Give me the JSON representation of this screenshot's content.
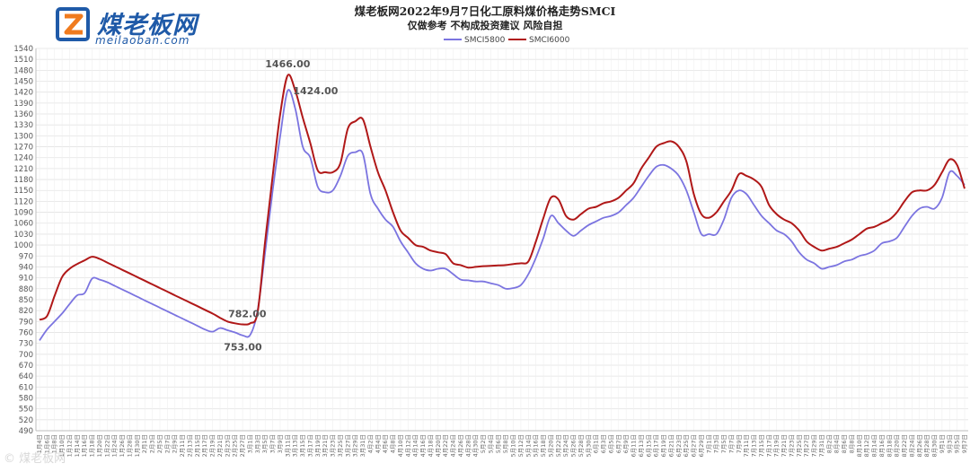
{
  "logo": {
    "brand_text": "煤老板网",
    "url_text": "meilaoban.com",
    "colors": {
      "primary": "#1f5aa8",
      "accent": "#f07b1e"
    }
  },
  "watermark": "© 煤老板网",
  "colors": {
    "SMCI5800": "#7b74e0",
    "SMCI6000": "#b01818",
    "grid": "#e3e3e3"
  },
  "chart_data": {
    "type": "line",
    "title": "煤老板网2022年9月7日化工原料煤价格走势SMCI",
    "subtitle": "仅做参考 不构成投资建议 风险自担",
    "xlabel": "",
    "ylabel": "",
    "ylim": [
      490,
      1540
    ],
    "ytick_step": 10,
    "ytick_label_step": 30,
    "grid": true,
    "legend_position": "top-center",
    "x": [
      "1月4日",
      "1月6日",
      "1月8日",
      "1月10日",
      "1月12日",
      "1月14日",
      "1月16日",
      "1月18日",
      "1月20日",
      "1月22日",
      "1月24日",
      "1月26日",
      "1月28日",
      "1月30日",
      "2月1日",
      "2月3日",
      "2月5日",
      "2月7日",
      "2月9日",
      "2月11日",
      "2月13日",
      "2月15日",
      "2月17日",
      "2月19日",
      "2月21日",
      "2月23日",
      "2月25日",
      "2月27日",
      "3月1日",
      "3月3日",
      "3月5日",
      "3月7日",
      "3月9日",
      "3月11日",
      "3月13日",
      "3月15日",
      "3月17日",
      "3月19日",
      "3月21日",
      "3月23日",
      "3月25日",
      "3月27日",
      "3月29日",
      "3月31日",
      "4月2日",
      "4月4日",
      "4月6日",
      "4月8日",
      "4月10日",
      "4月12日",
      "4月14日",
      "4月16日",
      "4月18日",
      "4月20日",
      "4月22日",
      "4月24日",
      "4月26日",
      "4月28日",
      "4月30日",
      "5月2日",
      "5月4日",
      "5月6日",
      "5月8日",
      "5月10日",
      "5月12日",
      "5月14日",
      "5月16日",
      "5月18日",
      "5月20日",
      "5月22日",
      "5月24日",
      "5月26日",
      "5月28日",
      "5月30日",
      "6月1日",
      "6月3日",
      "6月5日",
      "6月7日",
      "6月9日",
      "6月11日",
      "6月13日",
      "6月15日",
      "6月17日",
      "6月19日",
      "6月21日",
      "6月23日",
      "6月25日",
      "6月27日",
      "6月29日",
      "7月1日",
      "7月3日",
      "7月5日",
      "7月7日",
      "7月9日",
      "7月11日",
      "7月13日",
      "7月15日",
      "7月17日",
      "7月19日",
      "7月21日",
      "7月23日",
      "7月25日",
      "7月27日",
      "7月29日",
      "7月31日",
      "8月2日",
      "8月4日",
      "8月6日",
      "8月8日",
      "8月10日",
      "8月12日",
      "8月14日",
      "8月16日",
      "8月18日",
      "8月20日",
      "8月22日",
      "8月24日",
      "8月26日",
      "8月28日",
      "8月30日",
      "9月1日",
      "9月3日",
      "9月5日",
      "9月7日"
    ],
    "series": [
      {
        "name": "SMCI5800",
        "color": "#7b74e0",
        "values": [
          738,
          768,
          790,
          812,
          838,
          862,
          868,
          908,
          905,
          898,
          888,
          878,
          868,
          858,
          848,
          838,
          828,
          818,
          808,
          798,
          788,
          778,
          768,
          762,
          772,
          766,
          760,
          752,
          753,
          820,
          980,
          1150,
          1300,
          1424,
          1375,
          1270,
          1240,
          1160,
          1145,
          1150,
          1190,
          1245,
          1255,
          1250,
          1140,
          1100,
          1070,
          1050,
          1010,
          980,
          950,
          935,
          930,
          935,
          935,
          920,
          905,
          903,
          900,
          900,
          895,
          890,
          880,
          882,
          890,
          920,
          965,
          1020,
          1080,
          1060,
          1040,
          1025,
          1040,
          1055,
          1065,
          1075,
          1080,
          1090,
          1110,
          1130,
          1160,
          1190,
          1215,
          1220,
          1210,
          1190,
          1150,
          1090,
          1030,
          1030,
          1030,
          1070,
          1130,
          1150,
          1140,
          1110,
          1080,
          1060,
          1040,
          1030,
          1010,
          980,
          960,
          950,
          935,
          940,
          945,
          955,
          960,
          970,
          975,
          985,
          1005,
          1010,
          1020,
          1050,
          1080,
          1100,
          1105,
          1100,
          1130,
          1200,
          1190,
          1165
        ]
      },
      {
        "name": "SMCI6000",
        "color": "#b01818",
        "values": [
          795,
          805,
          860,
          912,
          935,
          948,
          958,
          968,
          962,
          952,
          942,
          932,
          922,
          912,
          902,
          892,
          882,
          872,
          862,
          852,
          842,
          832,
          822,
          812,
          800,
          790,
          785,
          782,
          785,
          815,
          1010,
          1190,
          1360,
          1466,
          1425,
          1350,
          1280,
          1205,
          1200,
          1200,
          1225,
          1320,
          1340,
          1345,
          1270,
          1200,
          1150,
          1090,
          1040,
          1020,
          1000,
          995,
          985,
          980,
          975,
          950,
          945,
          938,
          940,
          942,
          943,
          944,
          945,
          948,
          950,
          955,
          1010,
          1075,
          1130,
          1125,
          1080,
          1070,
          1085,
          1100,
          1105,
          1115,
          1120,
          1130,
          1150,
          1170,
          1210,
          1240,
          1270,
          1280,
          1285,
          1270,
          1230,
          1140,
          1085,
          1075,
          1090,
          1120,
          1150,
          1195,
          1190,
          1180,
          1160,
          1110,
          1085,
          1070,
          1060,
          1040,
          1010,
          995,
          985,
          990,
          995,
          1005,
          1015,
          1030,
          1045,
          1050,
          1060,
          1070,
          1090,
          1120,
          1145,
          1150,
          1150,
          1165,
          1200,
          1235,
          1220,
          1155
        ]
      }
    ],
    "annotations": [
      {
        "label": "1466.00",
        "x": "3月11日",
        "y": 1466
      },
      {
        "label": "1424.00",
        "x": "3月11日",
        "y": 1424
      },
      {
        "label": "782.00",
        "x": "2月27日",
        "y": 782
      },
      {
        "label": "753.00",
        "x": "3月1日",
        "y": 753
      }
    ]
  }
}
